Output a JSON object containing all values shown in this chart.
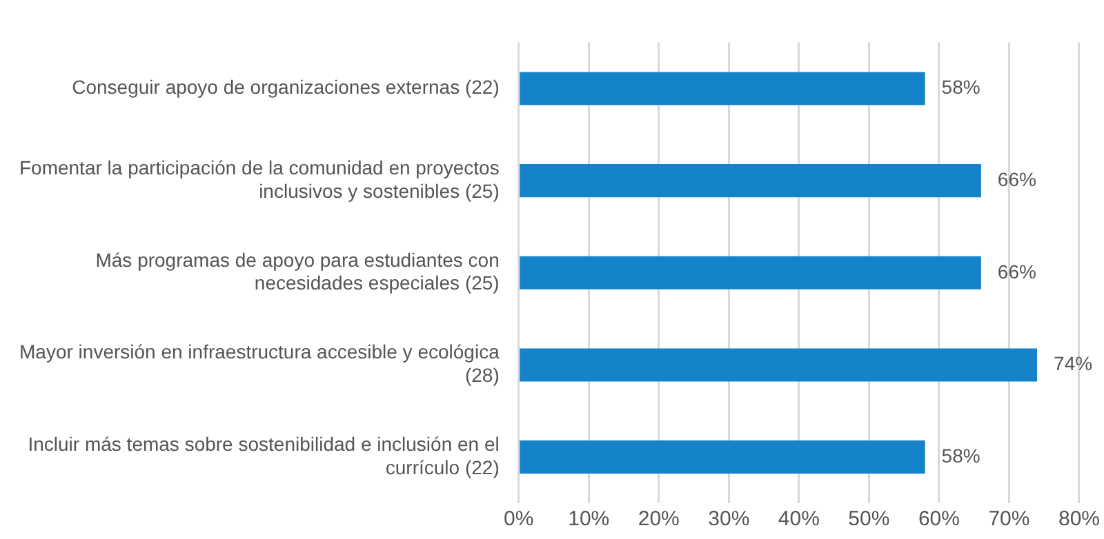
{
  "chart_data": {
    "type": "bar",
    "orientation": "horizontal",
    "categories": [
      "Conseguir apoyo de organizaciones externas (22)",
      "Fomentar la participación de la comunidad en proyectos inclusivos y sostenibles (25)",
      "Más programas de apoyo para estudiantes con necesidades especiales (25)",
      "Mayor inversión en infraestructura accesible y ecológica (28)",
      "Incluir más temas sobre sostenibilidad e inclusión en el currículo (22)"
    ],
    "values": [
      58,
      66,
      66,
      74,
      58
    ],
    "value_labels": [
      "58%",
      "66%",
      "66%",
      "74%",
      "58%"
    ],
    "color": "#1483c9",
    "xlim": [
      0,
      80
    ],
    "xticks": [
      {
        "value": 0,
        "label": "0%"
      },
      {
        "value": 10,
        "label": "10%"
      },
      {
        "value": 20,
        "label": "20%"
      },
      {
        "value": 30,
        "label": "30%"
      },
      {
        "value": 40,
        "label": "40%"
      },
      {
        "value": 50,
        "label": "50%"
      },
      {
        "value": 60,
        "label": "60%"
      },
      {
        "value": 70,
        "label": "70%"
      },
      {
        "value": 80,
        "label": "80%"
      }
    ],
    "grid": "x",
    "legend": false
  }
}
